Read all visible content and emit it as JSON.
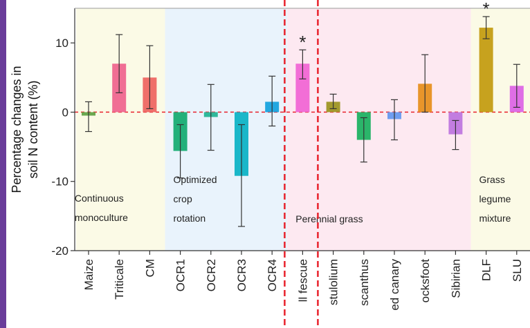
{
  "accent": {
    "left_bar": "#6a3d9a",
    "divider": "#e8212b",
    "zero_line": "#e8212b"
  },
  "chart_data": {
    "type": "bar",
    "ylabel_lines": [
      "Percentage changes in",
      "soil N content (%)"
    ],
    "ylim": [
      -20,
      15
    ],
    "yticks": [
      -20,
      -10,
      0,
      10
    ],
    "grid": false,
    "categories": [
      {
        "label": "Maize",
        "value": -0.5,
        "err_low": -2.8,
        "err_high": 1.5,
        "color": "#6aa84f",
        "star": false
      },
      {
        "label": "Triticale",
        "value": 7.0,
        "err_low": 2.8,
        "err_high": 11.2,
        "color": "#f06e94",
        "star": false
      },
      {
        "label": "CM",
        "value": 5.0,
        "err_low": 0.5,
        "err_high": 9.6,
        "color": "#ef6f6a",
        "star": false
      },
      {
        "label": "OCR1",
        "value": -5.6,
        "err_low": -9.5,
        "err_high": -1.8,
        "color": "#23b07a",
        "star": false
      },
      {
        "label": "OCR2",
        "value": -0.7,
        "err_low": -5.5,
        "err_high": 4.0,
        "color": "#2fb89a",
        "star": false
      },
      {
        "label": "OCR3",
        "value": -9.2,
        "err_low": -16.5,
        "err_high": -1.8,
        "color": "#1ab7c9",
        "star": false
      },
      {
        "label": "OCR4",
        "value": 1.5,
        "err_low": -2.0,
        "err_high": 5.2,
        "color": "#22a7e0",
        "star": false
      },
      {
        "label": "ll fescue",
        "value": 7.0,
        "err_low": 4.8,
        "err_high": 9.0,
        "color": "#f26ed6",
        "star": true
      },
      {
        "label": "stulolium",
        "value": 1.5,
        "err_low": 0.5,
        "err_high": 2.6,
        "color": "#a39a2e",
        "star": false
      },
      {
        "label": "scanthus",
        "value": -4.0,
        "err_low": -7.2,
        "err_high": -0.8,
        "color": "#2bb56a",
        "star": false
      },
      {
        "label": "ed canary",
        "value": -1.0,
        "err_low": -4.0,
        "err_high": 1.8,
        "color": "#6f9df0",
        "star": false
      },
      {
        "label": "ocksfoot",
        "value": 4.1,
        "err_low": 0.0,
        "err_high": 8.3,
        "color": "#e8952a",
        "star": false
      },
      {
        "label": "Sibirian",
        "value": -3.2,
        "err_low": -5.4,
        "err_high": -1.2,
        "color": "#c27de0",
        "star": false
      },
      {
        "label": "DLF",
        "value": 12.2,
        "err_low": 10.6,
        "err_high": 13.8,
        "color": "#c7a21e",
        "star": true
      },
      {
        "label": "SLU",
        "value": 3.8,
        "err_low": 0.7,
        "err_high": 6.9,
        "color": "#df6ee6",
        "star": false
      }
    ],
    "regions": [
      {
        "lines": [
          "Continuous",
          "monoculture"
        ],
        "from": 0,
        "to": 2,
        "color": "#fbfae6"
      },
      {
        "lines": [
          "Optimized",
          "crop",
          "rotation"
        ],
        "from": 3,
        "to": 6,
        "color": "#e9f3fc"
      },
      {
        "lines": [
          "Perennial grass"
        ],
        "from": 7,
        "to": 12,
        "color": "#fde9f1"
      },
      {
        "lines": [
          "Grass",
          "legume",
          "mixture"
        ],
        "from": 13,
        "to": 14,
        "color": "#fbfae6"
      }
    ],
    "star_symbol": "*"
  }
}
